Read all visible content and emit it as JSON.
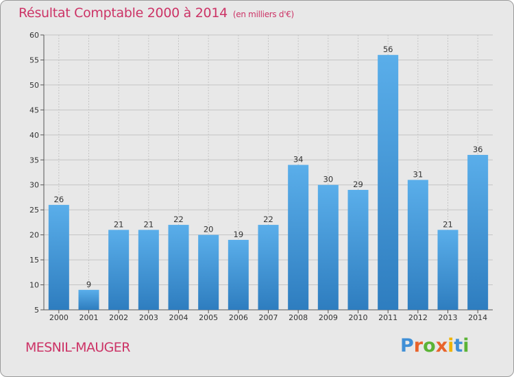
{
  "chart_data": {
    "type": "bar",
    "title": "Résultat Comptable 2000 à 2014",
    "subtitle": "(en milliers d'€)",
    "categories": [
      "2000",
      "2001",
      "2002",
      "2003",
      "2004",
      "2005",
      "2006",
      "2007",
      "2008",
      "2009",
      "2010",
      "2011",
      "2012",
      "2013",
      "2014"
    ],
    "values": [
      26,
      9,
      21,
      21,
      22,
      20,
      19,
      22,
      34,
      30,
      29,
      56,
      31,
      21,
      36
    ],
    "ylim": [
      5,
      60
    ],
    "yticks": [
      5,
      10,
      15,
      20,
      25,
      30,
      35,
      40,
      45,
      50,
      55,
      60
    ],
    "xlabel": "",
    "ylabel": "",
    "grid": true
  },
  "commune": "MESNIL-MAUGER",
  "logo": {
    "letters": [
      {
        "char": "P",
        "color": "#3f8fd6"
      },
      {
        "char": "r",
        "color": "#e8632b"
      },
      {
        "char": "o",
        "color": "#5bb336"
      },
      {
        "char": "x",
        "color": "#e8632b"
      },
      {
        "char": "i",
        "color": "#f0b400"
      },
      {
        "char": "t",
        "color": "#3f8fd6"
      },
      {
        "char": "i",
        "color": "#5bb336"
      }
    ]
  },
  "colors": {
    "bar_top": "#5aaeea",
    "bar_bottom": "#2e7dbf",
    "title": "#cc3366",
    "grid": "#c4c4c4"
  }
}
